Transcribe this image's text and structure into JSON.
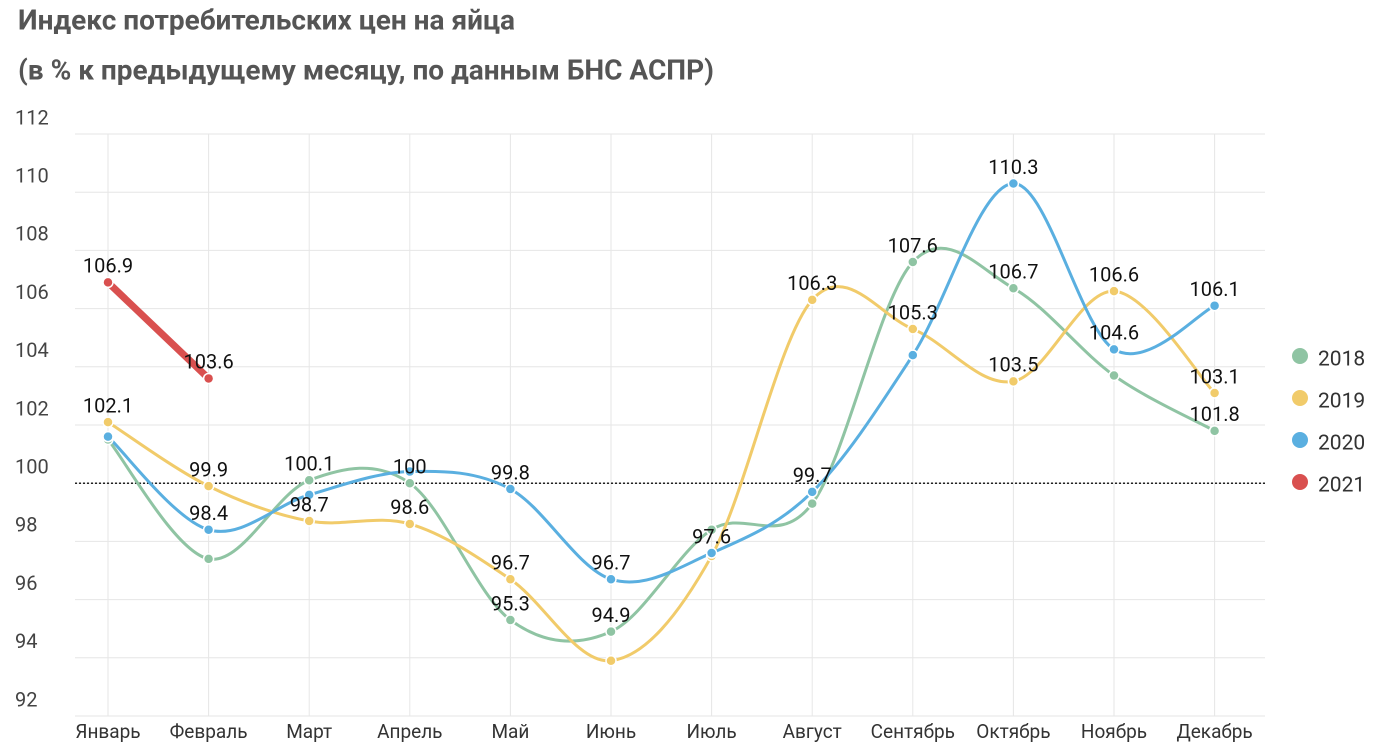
{
  "chart_data": {
    "type": "line",
    "title": "Индекс потребительских цен на яйца",
    "subtitle": "(в % к предыдущему месяцу, по данным БНС АСПР)",
    "categories": [
      "Январь",
      "Февраль",
      "Март",
      "Апрель",
      "Май",
      "Июнь",
      "Июль",
      "Август",
      "Сентябрь",
      "Октябрь",
      "Ноябрь",
      "Декабрь"
    ],
    "ylim": [
      92,
      112
    ],
    "yticks": [
      92,
      94,
      96,
      98,
      100,
      102,
      104,
      106,
      108,
      110,
      112
    ],
    "grid": true,
    "hline": 100,
    "legend": "right",
    "series": [
      {
        "name": "2018",
        "color": "#8fc4a3",
        "values": [
          101.5,
          97.4,
          100.1,
          100,
          95.3,
          94.9,
          98.4,
          99.3,
          107.6,
          106.7,
          103.7,
          101.8
        ],
        "value_labels": [
          null,
          null,
          "100.1",
          "100",
          "95.3",
          "94.9",
          null,
          null,
          "107.6",
          "106.7",
          null,
          "101.8"
        ]
      },
      {
        "name": "2019",
        "color": "#f1cb6a",
        "values": [
          102.1,
          99.9,
          98.7,
          98.6,
          96.7,
          93.9,
          97.5,
          106.3,
          105.3,
          103.5,
          106.6,
          103.1
        ],
        "value_labels": [
          "102.1",
          "99.9",
          "98.7",
          "98.6",
          "96.7",
          null,
          null,
          "106.3",
          "105.3",
          "103.5",
          "106.6",
          "103.1"
        ]
      },
      {
        "name": "2020",
        "color": "#5aafe0",
        "values": [
          101.6,
          98.4,
          99.6,
          100.4,
          99.8,
          96.7,
          97.6,
          99.7,
          104.4,
          110.3,
          104.6,
          106.1
        ],
        "value_labels": [
          null,
          "98.4",
          null,
          null,
          "99.8",
          "96.7",
          "97.6",
          "99.7",
          null,
          "110.3",
          "104.6",
          "106.1"
        ]
      },
      {
        "name": "2021",
        "color": "#d9504f",
        "values": [
          106.9,
          103.6,
          null,
          null,
          null,
          null,
          null,
          null,
          null,
          null,
          null,
          null
        ],
        "value_labels": [
          "106.9",
          "103.6",
          null,
          null,
          null,
          null,
          null,
          null,
          null,
          null,
          null,
          null
        ]
      }
    ]
  }
}
